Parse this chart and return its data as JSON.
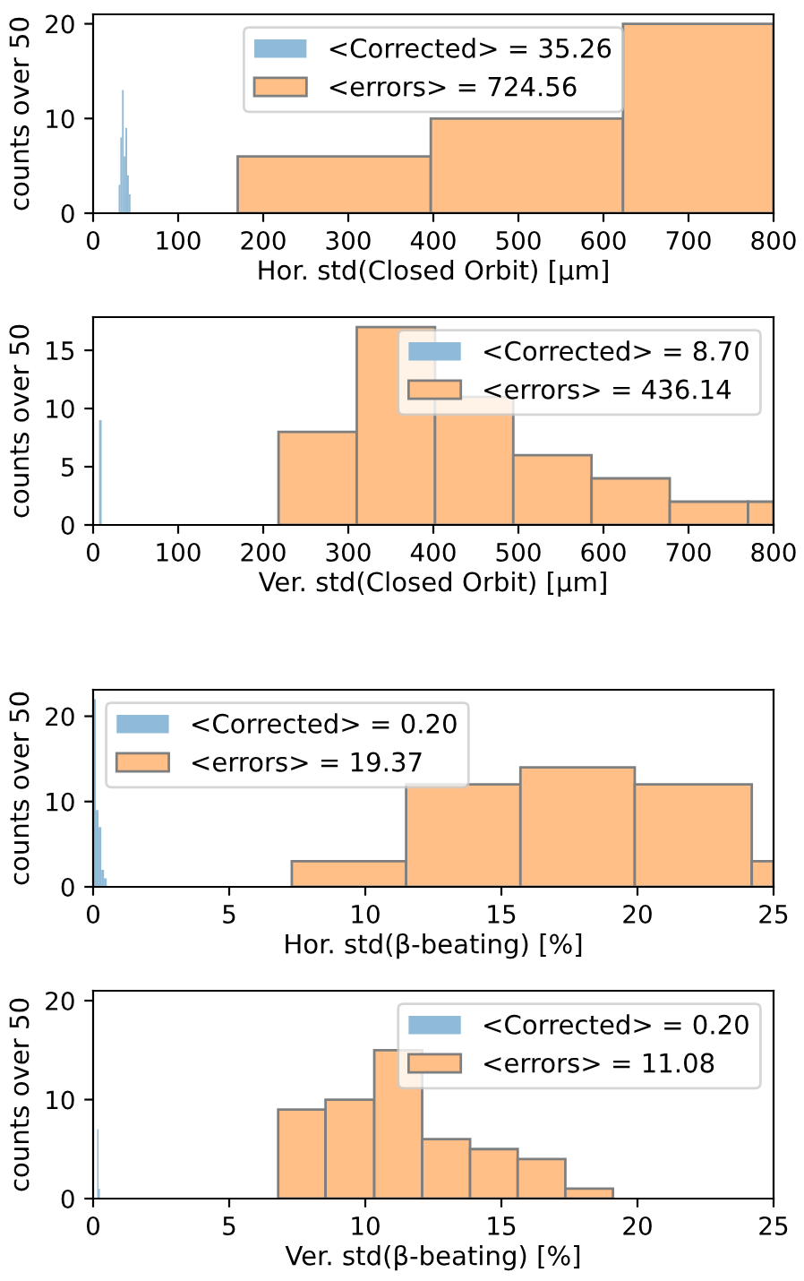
{
  "chart_data": [
    {
      "type": "histogram",
      "xlabel": "Hor. std(Closed Orbit) [μm]",
      "ylabel": "counts over 50",
      "xlim": [
        0,
        800
      ],
      "xticks": [
        0,
        100,
        200,
        300,
        400,
        500,
        600,
        700,
        800
      ],
      "ylim": [
        0,
        21
      ],
      "yticks": [
        0,
        10,
        20
      ],
      "legend": "top center",
      "bins": [
        170,
        397,
        623,
        800
      ],
      "series": [
        {
          "name": "<Corrected> = 35.26",
          "color": "#8fbbd9",
          "bins": [
            30,
            32,
            34,
            36,
            38,
            40,
            42,
            44
          ],
          "values": [
            3,
            8,
            13,
            6,
            9,
            4,
            2
          ]
        },
        {
          "name": "<errors> = 724.56",
          "color": "#ffbf86",
          "values": [
            6,
            10,
            20
          ]
        }
      ]
    },
    {
      "type": "histogram",
      "xlabel": "Ver. std(Closed Orbit) [μm]",
      "ylabel": "counts over 50",
      "xlim": [
        0,
        800
      ],
      "xticks": [
        0,
        100,
        200,
        300,
        400,
        500,
        600,
        700,
        800
      ],
      "ylim": [
        0,
        17.85
      ],
      "yticks": [
        0,
        5,
        10,
        15
      ],
      "legend": "top right",
      "bins": [
        218,
        310,
        402,
        494,
        586,
        678,
        770,
        800
      ],
      "series": [
        {
          "name": "<Corrected> = 8.70",
          "color": "#8fbbd9",
          "bins": [
            7,
            10
          ],
          "values": [
            9
          ]
        },
        {
          "name": "<errors> = 436.14",
          "color": "#ffbf86",
          "values": [
            8,
            17,
            11,
            6,
            4,
            2,
            2
          ]
        }
      ]
    },
    {
      "type": "histogram",
      "xlabel": "Hor. std(β-beating) [%]",
      "ylabel": "counts over 50",
      "xlim": [
        0,
        25
      ],
      "xticks": [
        0,
        5,
        10,
        15,
        20,
        25
      ],
      "ylim": [
        0,
        23.1
      ],
      "yticks": [
        0,
        10,
        20
      ],
      "legend": "top left",
      "bins": [
        7.3,
        11.5,
        15.7,
        19.9,
        24.2,
        25
      ],
      "series": [
        {
          "name": "<Corrected> = 0.20",
          "color": "#8fbbd9",
          "bins": [
            0,
            0.1,
            0.2,
            0.3,
            0.4,
            0.5
          ],
          "values": [
            22,
            9,
            7,
            2,
            1
          ]
        },
        {
          "name": "<errors> = 19.37",
          "color": "#ffbf86",
          "values": [
            3,
            12,
            14,
            12,
            3
          ]
        }
      ]
    },
    {
      "type": "histogram",
      "xlabel": "Ver. std(β-beating) [%]",
      "ylabel": "counts over 50",
      "xlim": [
        0,
        25
      ],
      "xticks": [
        0,
        5,
        10,
        15,
        20,
        25
      ],
      "ylim": [
        0,
        21
      ],
      "yticks": [
        0,
        10,
        20
      ],
      "legend": "top right",
      "bins": [
        6.8,
        8.54,
        10.33,
        12.09,
        13.85,
        15.6,
        17.35,
        19.1
      ],
      "series": [
        {
          "name": "<Corrected> = 0.20",
          "color": "#8fbbd9",
          "bins": [
            0.15,
            0.2,
            0.25
          ],
          "values": [
            7,
            1
          ]
        },
        {
          "name": "<errors> = 11.08",
          "color": "#ffbf86",
          "values": [
            9,
            10,
            15,
            6,
            5,
            4,
            1
          ]
        }
      ]
    }
  ]
}
